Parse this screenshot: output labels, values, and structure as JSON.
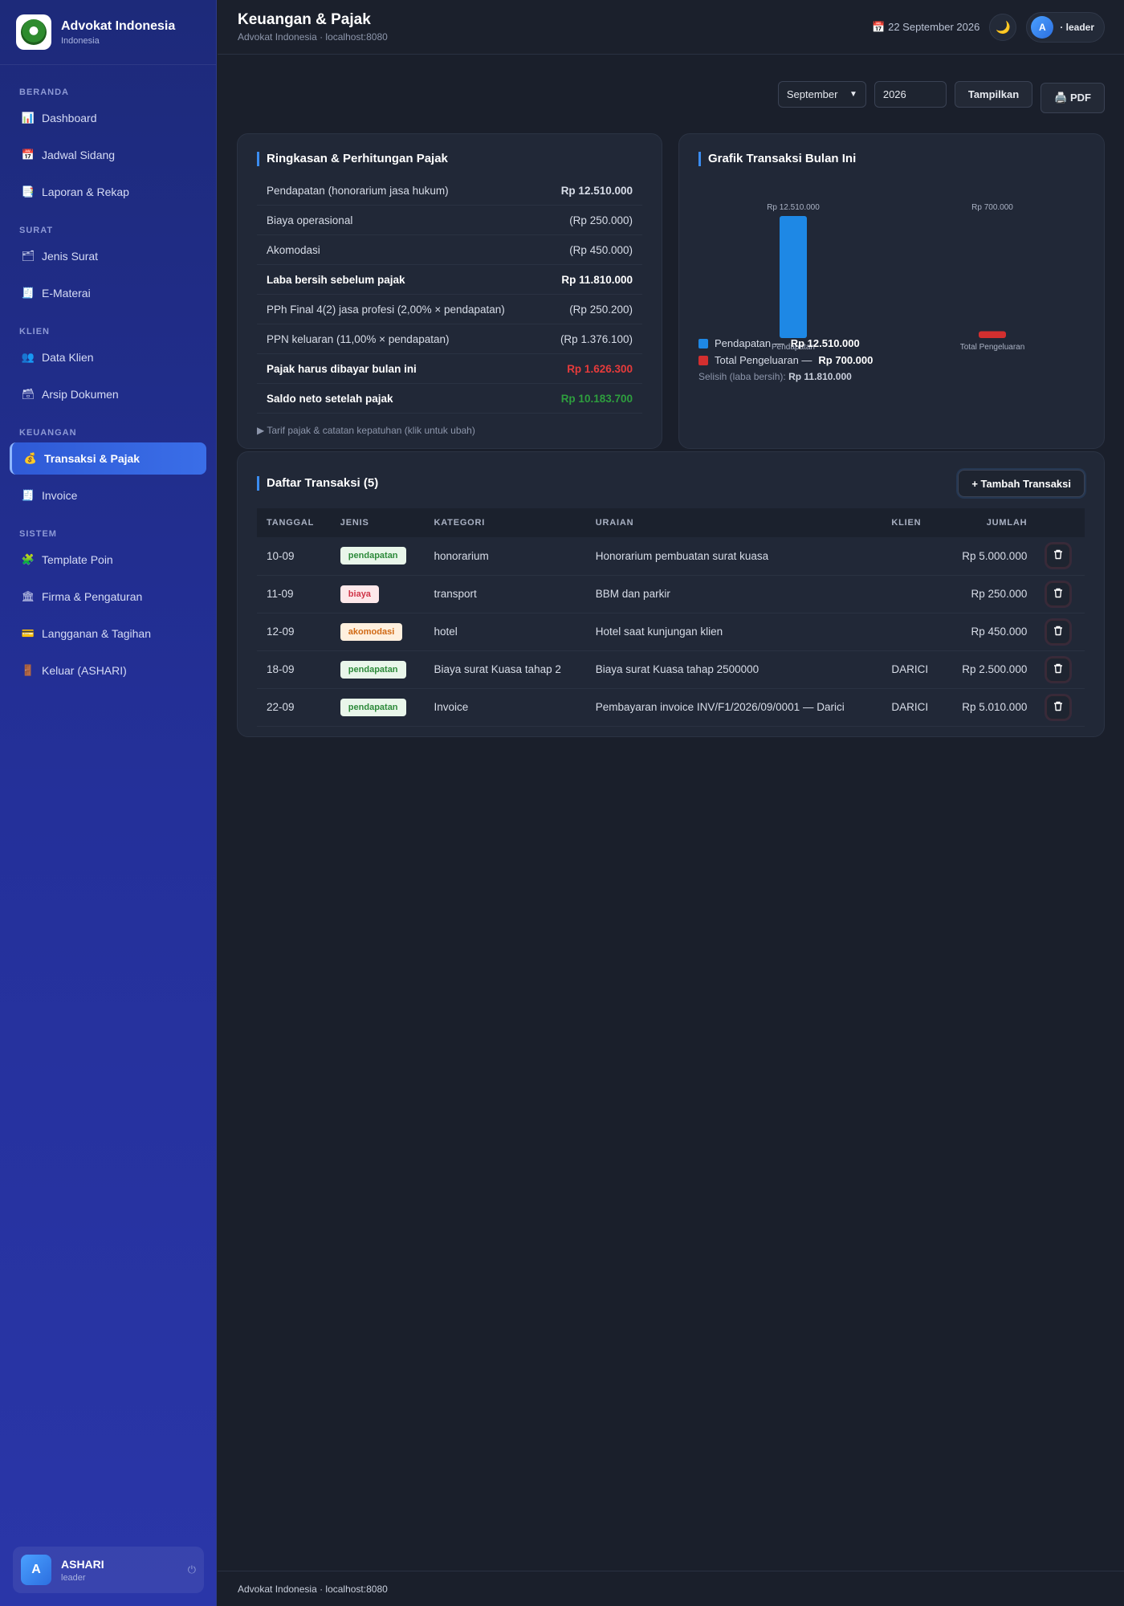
{
  "brand": {
    "name": "Advokat Indonesia",
    "subtitle": "Indonesia"
  },
  "sidebar": {
    "sections": [
      {
        "label": "BERANDA",
        "items": [
          {
            "icon": "📊",
            "icon_name": "chart-icon",
            "label": "Dashboard"
          },
          {
            "icon": "📅",
            "icon_name": "calendar-icon",
            "label": "Jadwal Sidang"
          },
          {
            "icon": "📑",
            "icon_name": "report-icon",
            "label": "Laporan & Rekap"
          }
        ]
      },
      {
        "label": "SURAT",
        "items": [
          {
            "icon": "🗂",
            "icon_name": "folder-icon",
            "label": "Jenis Surat"
          },
          {
            "icon": "🧾",
            "icon_name": "stamp-icon",
            "label": "E-Materai"
          }
        ]
      },
      {
        "label": "KLIEN",
        "items": [
          {
            "icon": "👥",
            "icon_name": "users-icon",
            "label": "Data Klien"
          },
          {
            "icon": "🗃",
            "icon_name": "archive-icon",
            "label": "Arsip Dokumen"
          }
        ]
      },
      {
        "label": "KEUANGAN",
        "items": [
          {
            "icon": "💰",
            "icon_name": "money-bag-icon",
            "label": "Transaksi & Pajak",
            "active": true
          },
          {
            "icon": "🧾",
            "icon_name": "receipt-icon",
            "label": "Invoice"
          }
        ]
      },
      {
        "label": "SISTEM",
        "items": [
          {
            "icon": "🧩",
            "icon_name": "puzzle-icon",
            "label": "Template Poin"
          },
          {
            "icon": "🏛",
            "icon_name": "building-icon",
            "label": "Firma & Pengaturan"
          },
          {
            "icon": "💳",
            "icon_name": "card-icon",
            "label": "Langganan & Tagihan"
          },
          {
            "icon": "🚪",
            "icon_name": "door-icon",
            "label": "Keluar (ASHARI)"
          }
        ]
      }
    ],
    "user": {
      "initial": "A",
      "name": "ASHARI",
      "role": "leader",
      "power_icon": "⏻"
    }
  },
  "header": {
    "title": "Keuangan & Pajak",
    "subtitle": "Advokat Indonesia · localhost:8080",
    "date": "📅 22 September 2026",
    "theme_icon": "🌙",
    "user_initial": "A",
    "user_role": "· leader"
  },
  "filters": {
    "month": "September",
    "year": "2026",
    "show_label": "Tampilkan",
    "pdf_label": "🖨️ PDF"
  },
  "tax_summary": {
    "title": "Ringkasan & Perhitungan Pajak",
    "rows": [
      {
        "label": "Pendapatan (honorarium jasa hukum)",
        "value": "Rp 12.510.000",
        "style": "strong"
      },
      {
        "label": "Biaya operasional",
        "value": "(Rp 250.000)"
      },
      {
        "label": "Akomodasi",
        "value": "(Rp 450.000)"
      },
      {
        "label": "Laba bersih sebelum pajak",
        "value": "Rp 11.810.000",
        "style": "bold"
      },
      {
        "label": "PPh Final 4(2) jasa profesi (2,00% × pendapatan)",
        "value": "(Rp 250.200)"
      },
      {
        "label": "PPN keluaran (11,00% × pendapatan)",
        "value": "(Rp 1.376.100)"
      },
      {
        "label": "Pajak harus dibayar bulan ini",
        "value": "Rp 1.626.300",
        "style": "bold",
        "color": "red"
      },
      {
        "label": "Saldo neto setelah pajak",
        "value": "Rp 10.183.700",
        "style": "bold",
        "color": "green"
      }
    ],
    "note": "▶ Tarif pajak & catatan kepatuhan (klik untuk ubah)"
  },
  "chart_card": {
    "title": "Grafik Transaksi Bulan Ini",
    "legend": [
      {
        "prefix": "Pendapatan — ",
        "value": "Rp 12.510.000",
        "color": "#1e88e5"
      },
      {
        "prefix": "Total Pengeluaran — ",
        "value": "Rp 700.000",
        "color": "#d32f2f"
      }
    ],
    "diff_label": "Selisih (laba bersih): ",
    "diff_value": "Rp 11.810.000"
  },
  "chart_data": {
    "type": "bar",
    "categories": [
      "Pendapatan",
      "Total Pengeluaran"
    ],
    "values": [
      12510000,
      700000
    ],
    "data_labels": [
      "Rp 12.510.000",
      "Rp 700.000"
    ],
    "colors": [
      "#1e88e5",
      "#d32f2f"
    ],
    "ylim": [
      0,
      12510000
    ],
    "grid": false
  },
  "transactions": {
    "title": "Daftar Transaksi (5)",
    "add_label": "+ Tambah Transaksi",
    "columns": [
      "TANGGAL",
      "JENIS",
      "KATEGORI",
      "URAIAN",
      "KLIEN",
      "JUMLAH"
    ],
    "rows": [
      {
        "date": "10-09",
        "type": "pendapatan",
        "category": "honorarium",
        "desc": "Honorarium pembuatan surat kuasa",
        "client": "",
        "amount": "Rp 5.000.000"
      },
      {
        "date": "11-09",
        "type": "biaya",
        "category": "transport",
        "desc": "BBM dan parkir",
        "client": "",
        "amount": "Rp 250.000"
      },
      {
        "date": "12-09",
        "type": "akomodasi",
        "category": "hotel",
        "desc": "Hotel saat kunjungan klien",
        "client": "",
        "amount": "Rp 450.000"
      },
      {
        "date": "18-09",
        "type": "pendapatan",
        "category": "Biaya surat Kuasa tahap 2",
        "desc": "Biaya surat Kuasa tahap 2500000",
        "client": "DARICI",
        "amount": "Rp 2.500.000"
      },
      {
        "date": "22-09",
        "type": "pendapatan",
        "category": "Invoice",
        "desc": "Pembayaran invoice INV/F1/2026/09/0001 — Darici",
        "client": "DARICI",
        "amount": "Rp 5.010.000"
      }
    ]
  },
  "footer": {
    "text": "Advokat Indonesia · localhost:8080"
  }
}
